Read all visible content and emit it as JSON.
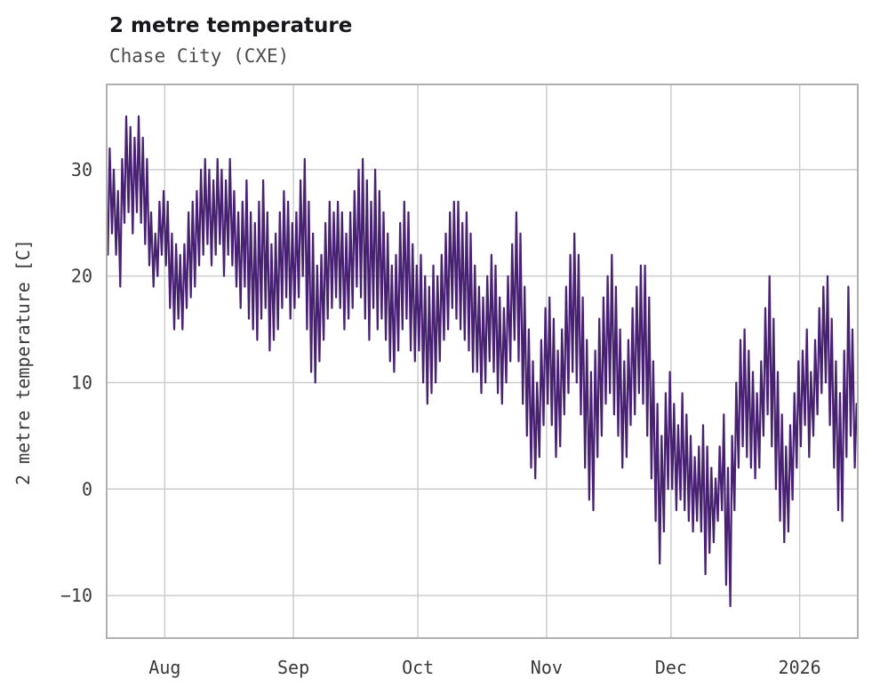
{
  "header": {
    "title": "2 metre temperature",
    "subtitle": "Chase City (CXE)"
  },
  "chart_data": {
    "type": "line",
    "title": "2 metre temperature",
    "subtitle": "Chase City (CXE)",
    "xlabel": "",
    "ylabel": "2 metre temperature [C]",
    "ylim": [
      -14,
      38
    ],
    "yticks": [
      -10,
      0,
      10,
      20,
      30
    ],
    "x_unit": "day index of sample (2 samples per day: daily min then daily max)",
    "xlim": [
      0,
      181
    ],
    "xticks": [
      {
        "label": "Aug",
        "x": 14
      },
      {
        "label": "Sep",
        "x": 45
      },
      {
        "label": "Oct",
        "x": 75
      },
      {
        "label": "Nov",
        "x": 106
      },
      {
        "label": "Dec",
        "x": 136
      },
      {
        "label": "2026",
        "x": 167
      }
    ],
    "grid": true,
    "legend": "none",
    "line_color": "#482173",
    "grid_color": "#cccccc",
    "spine_color": "#b0b0b0",
    "tick_text_color": "#3a3a3a",
    "series_description": "Estimated daily minimum and maximum 2 metre temperature (deg C), read from the jagged hourly trace; rendered as a diurnal min/max zigzag.",
    "daily_min": [
      22,
      24,
      22,
      19,
      25,
      26,
      24,
      26,
      25,
      23,
      21,
      19,
      20,
      22,
      21,
      17,
      15,
      16,
      15,
      17,
      18,
      19,
      21,
      22,
      23,
      21,
      22,
      23,
      20,
      22,
      21,
      19,
      17,
      19,
      16,
      15,
      14,
      16,
      17,
      13,
      14,
      15,
      17,
      18,
      16,
      17,
      18,
      20,
      15,
      11,
      10,
      12,
      14,
      16,
      17,
      18,
      17,
      15,
      16,
      17,
      19,
      18,
      16,
      14,
      17,
      15,
      16,
      14,
      12,
      11,
      13,
      15,
      16,
      13,
      12,
      13,
      10,
      8,
      9,
      10,
      12,
      14,
      15,
      17,
      16,
      15,
      14,
      13,
      11,
      11,
      9,
      10,
      12,
      11,
      9,
      8,
      10,
      12,
      14,
      12,
      8,
      5,
      2,
      1,
      3,
      6,
      8,
      6,
      3,
      4,
      7,
      9,
      11,
      10,
      7,
      2,
      -1,
      -2,
      3,
      5,
      8,
      9,
      7,
      5,
      2,
      3,
      6,
      7,
      9,
      8,
      5,
      1,
      -3,
      -7,
      -4,
      0,
      0,
      -2,
      -1,
      -2,
      -3,
      -4,
      -3,
      -4,
      -8,
      -6,
      -5,
      -3,
      -2,
      -9,
      -11,
      -2,
      2,
      4,
      3,
      2,
      1,
      2,
      5,
      7,
      4,
      0,
      -3,
      -5,
      -4,
      -1,
      2,
      4,
      6,
      3,
      5,
      7,
      9,
      10,
      6,
      2,
      -2,
      -3,
      3,
      5,
      2
    ],
    "daily_max": [
      32,
      30,
      28,
      31,
      35,
      34,
      33,
      35,
      33,
      31,
      26,
      24,
      27,
      28,
      27,
      24,
      23,
      22,
      23,
      26,
      27,
      28,
      30,
      31,
      30,
      29,
      31,
      30,
      29,
      31,
      28,
      26,
      27,
      29,
      26,
      25,
      27,
      29,
      26,
      23,
      24,
      26,
      28,
      27,
      25,
      26,
      29,
      31,
      27,
      24,
      21,
      22,
      25,
      27,
      26,
      27,
      26,
      24,
      26,
      28,
      30,
      31,
      29,
      27,
      30,
      28,
      26,
      24,
      21,
      22,
      25,
      27,
      26,
      23,
      21,
      22,
      20,
      19,
      21,
      20,
      22,
      24,
      26,
      27,
      27,
      25,
      26,
      24,
      21,
      19,
      18,
      20,
      22,
      21,
      18,
      17,
      20,
      23,
      26,
      24,
      19,
      15,
      12,
      10,
      14,
      17,
      18,
      16,
      13,
      15,
      19,
      22,
      24,
      22,
      18,
      14,
      11,
      13,
      16,
      18,
      20,
      22,
      19,
      15,
      12,
      14,
      17,
      19,
      21,
      21,
      18,
      12,
      8,
      5,
      9,
      11,
      8,
      6,
      9,
      7,
      5,
      3,
      4,
      6,
      4,
      2,
      1,
      4,
      7,
      2,
      5,
      10,
      14,
      15,
      13,
      11,
      9,
      12,
      17,
      20,
      16,
      11,
      7,
      4,
      6,
      9,
      12,
      13,
      15,
      11,
      14,
      17,
      19,
      20,
      16,
      12,
      9,
      13,
      19,
      15,
      8
    ]
  }
}
